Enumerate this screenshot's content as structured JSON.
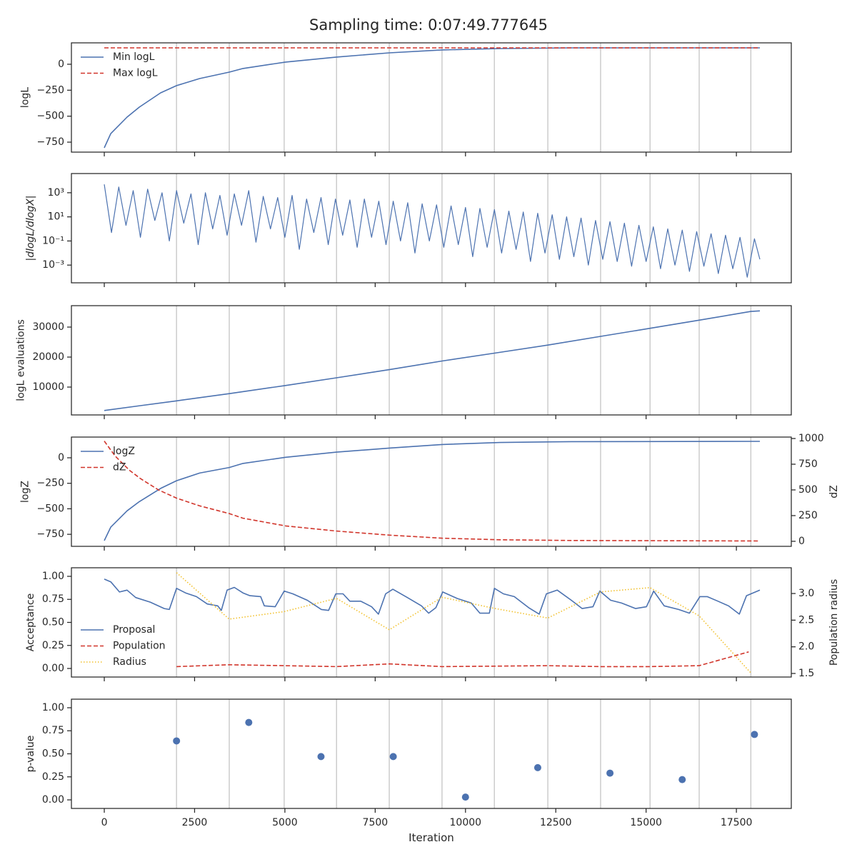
{
  "title": "Sampling time: 0:07:49.777645",
  "chart_data": [
    {
      "type": "line",
      "ylabel": "logL",
      "legend": "upper left",
      "xlim": [
        -910,
        19020
      ],
      "xticks": [
        0,
        2500,
        5000,
        7500,
        10000,
        12500,
        15000,
        17500
      ],
      "ylim": [
        -846,
        206
      ],
      "yticks": [
        0,
        {
          "value": -250,
          "label": "−250"
        },
        {
          "value": -500,
          "label": "−500"
        },
        {
          "value": -750,
          "label": "−750"
        }
      ],
      "vlines": [
        2000,
        3460,
        4980,
        6430,
        7890,
        9350,
        10800,
        12280,
        13740,
        15110,
        16470,
        17900
      ],
      "series": [
        {
          "name": "Min logL",
          "color": "#4c72b0",
          "style": "solid",
          "x": [
            0,
            180,
            630,
            970,
            1560,
            2000,
            2640,
            3460,
            3840,
            5020,
            6430,
            7890,
            9350,
            10960,
            12930,
            18150
          ],
          "values": [
            -805,
            -668,
            -509,
            -413,
            -275,
            -206,
            -138,
            -76,
            -41,
            21,
            69,
            110,
            138,
            151,
            158,
            158
          ]
        },
        {
          "name": "Max logL",
          "color": "#d1352b",
          "style": "dashed",
          "x": [
            0,
            18150
          ],
          "values": [
            158,
            158
          ]
        }
      ]
    },
    {
      "type": "line",
      "ylabel": "|dlogL/dlogX|",
      "log": true,
      "xlim": [
        -910,
        19020
      ],
      "xticks": [
        0,
        2500,
        5000,
        7500,
        10000,
        12500,
        15000,
        17500
      ],
      "ylim": [
        3.4e-05,
        39000
      ],
      "yticks": [
        {
          "value": 1000,
          "label": "10³"
        },
        {
          "value": 10,
          "label": "10¹"
        },
        {
          "value": 0.1,
          "label": "10⁻¹"
        },
        {
          "value": 0.001,
          "label": "10⁻³"
        }
      ],
      "vlines": [
        2000,
        3460,
        4980,
        6430,
        7890,
        9350,
        10800,
        12280,
        13740,
        15110,
        16470,
        17900
      ],
      "series": [
        {
          "color": "#4c72b0",
          "style": "solid",
          "x": [
            0,
            200,
            400,
            600,
            800,
            1000,
            1200,
            1400,
            1600,
            1800,
            2000,
            2200,
            2400,
            2600,
            2800,
            3000,
            3200,
            3400,
            3600,
            3800,
            4000,
            4200,
            4400,
            4600,
            4800,
            5000,
            5200,
            5400,
            5600,
            5800,
            6000,
            6200,
            6400,
            6600,
            6800,
            7000,
            7200,
            7400,
            7600,
            7800,
            8000,
            8200,
            8400,
            8600,
            8800,
            9000,
            9200,
            9400,
            9600,
            9800,
            10000,
            10200,
            10400,
            10600,
            10800,
            11000,
            11200,
            11400,
            11600,
            11800,
            12000,
            12200,
            12400,
            12600,
            12800,
            13000,
            13200,
            13400,
            13600,
            13800,
            14000,
            14200,
            14400,
            14600,
            14800,
            15000,
            15200,
            15400,
            15600,
            15800,
            16000,
            16200,
            16400,
            16600,
            16800,
            17000,
            17200,
            17400,
            17600,
            17800,
            18000,
            18150
          ],
          "values": [
            5000,
            0.5,
            3000,
            2,
            1500,
            0.2,
            2000,
            5,
            1000,
            0.1,
            1500,
            3,
            800,
            0.05,
            1000,
            1,
            600,
            0.3,
            800,
            2,
            1500,
            0.08,
            500,
            1,
            400,
            0.2,
            600,
            0.02,
            300,
            0.5,
            400,
            0.05,
            300,
            0.3,
            250,
            0.03,
            300,
            0.2,
            200,
            0.05,
            200,
            0.1,
            150,
            0.01,
            120,
            0.1,
            100,
            0.03,
            80,
            0.05,
            60,
            0.005,
            50,
            0.03,
            40,
            0.01,
            30,
            0.02,
            25,
            0.002,
            20,
            0.01,
            15,
            0.003,
            10,
            0.005,
            8,
            0.001,
            5,
            0.003,
            4,
            0.002,
            3,
            0.0008,
            2,
            0.002,
            1.5,
            0.0005,
            1,
            0.001,
            0.8,
            0.0003,
            0.6,
            0.0008,
            0.4,
            0.0002,
            0.3,
            0.0005,
            0.2,
            0.0001,
            0.15,
            0.003
          ]
        }
      ]
    },
    {
      "type": "line",
      "ylabel": "logL evaluations",
      "xlim": [
        -910,
        19020
      ],
      "xticks": [
        0,
        2500,
        5000,
        7500,
        10000,
        12500,
        15000,
        17500
      ],
      "ylim": [
        714,
        37140
      ],
      "yticks": [
        10000,
        20000,
        30000
      ],
      "vlines": [
        2000,
        3460,
        4980,
        6430,
        7890,
        9350,
        10800,
        12280,
        13740,
        15110,
        16470,
        17900
      ],
      "series": [
        {
          "color": "#4c72b0",
          "style": "solid",
          "x": [
            0,
            1000,
            2000,
            3460,
            5000,
            6430,
            7890,
            9350,
            10800,
            12280,
            13740,
            15110,
            16470,
            17900,
            18150
          ],
          "values": [
            2200,
            3800,
            5400,
            7800,
            10500,
            13100,
            15800,
            18700,
            21300,
            24000,
            26900,
            29600,
            32300,
            35200,
            35400
          ]
        }
      ]
    },
    {
      "type": "line",
      "ylabel": "logZ",
      "y2label": "dZ",
      "legend": "upper left",
      "xlim": [
        -910,
        19020
      ],
      "xticks": [
        0,
        2500,
        5000,
        7500,
        10000,
        12500,
        15000,
        17500
      ],
      "ylim": [
        -868,
        203
      ],
      "yticks": [
        0,
        {
          "value": -250,
          "label": "−250"
        },
        {
          "value": -500,
          "label": "−500"
        },
        {
          "value": -750,
          "label": "−750"
        }
      ],
      "y2lim": [
        -49,
        1014
      ],
      "y2ticks": [
        0,
        250,
        500,
        750,
        1000
      ],
      "vlines": [
        2000,
        3460,
        4980,
        6430,
        7890,
        9350,
        10800,
        12280,
        13740,
        15110,
        16470,
        17900
      ],
      "series": [
        {
          "name": "logZ",
          "color": "#4c72b0",
          "style": "solid",
          "x": [
            0,
            180,
            630,
            970,
            1560,
            2000,
            2640,
            3460,
            3840,
            5020,
            6430,
            7890,
            9350,
            10960,
            12930,
            18150
          ],
          "values": [
            -812,
            -680,
            -520,
            -430,
            -300,
            -225,
            -150,
            -95,
            -55,
            5,
            55,
            95,
            130,
            150,
            158,
            161
          ]
        },
        {
          "name": "dZ",
          "color": "#d1352b",
          "style": "dashed",
          "axis": "y2",
          "x": [
            0,
            300,
            700,
            1000,
            1500,
            2000,
            2640,
            3460,
            3840,
            5020,
            6430,
            7890,
            9350,
            10960,
            12930,
            18150
          ],
          "values": [
            975,
            830,
            690,
            610,
            500,
            420,
            345,
            270,
            225,
            150,
            100,
            60,
            30,
            15,
            8,
            3
          ]
        }
      ]
    },
    {
      "type": "line",
      "ylabel": "Acceptance",
      "y2label": "Population radius",
      "legend": "lower left",
      "xlim": [
        -910,
        19020
      ],
      "xticks": [
        0,
        2500,
        5000,
        7500,
        10000,
        12500,
        15000,
        17500
      ],
      "ylim": [
        -0.093,
        1.093
      ],
      "yticks": [
        {
          "value": 1,
          "label": "1.00"
        },
        0.75,
        {
          "value": 0.5,
          "label": "0.50"
        },
        0.25,
        {
          "value": 0,
          "label": "0.00"
        }
      ],
      "y2lim": [
        1.433,
        3.483
      ],
      "y2ticks": [
        {
          "value": 3,
          "label": "3.0"
        },
        2.5,
        {
          "value": 2,
          "label": "2.0"
        },
        1.5
      ],
      "vlines": [
        2000,
        3460,
        4980,
        6430,
        7890,
        9350,
        10800,
        12280,
        13740,
        15110,
        16470,
        17900
      ],
      "series": [
        {
          "name": "Proposal",
          "color": "#4c72b0",
          "style": "solid",
          "x": [
            0,
            180,
            420,
            630,
            870,
            1270,
            1660,
            1800,
            2000,
            2250,
            2550,
            2850,
            3140,
            3240,
            3400,
            3600,
            3840,
            4030,
            4330,
            4430,
            4730,
            4980,
            5220,
            5620,
            6010,
            6210,
            6410,
            6610,
            6800,
            7100,
            7400,
            7590,
            7790,
            7990,
            8390,
            8780,
            8980,
            9180,
            9370,
            9770,
            10160,
            10400,
            10660,
            10800,
            11050,
            11350,
            11750,
            12040,
            12240,
            12540,
            12930,
            13230,
            13530,
            13720,
            14020,
            14320,
            14710,
            15010,
            15210,
            15500,
            15900,
            16200,
            16490,
            16690,
            16990,
            17280,
            17580,
            17780,
            18150
          ],
          "values": [
            0.97,
            0.94,
            0.83,
            0.85,
            0.77,
            0.72,
            0.65,
            0.64,
            0.87,
            0.82,
            0.78,
            0.7,
            0.68,
            0.63,
            0.85,
            0.88,
            0.82,
            0.79,
            0.78,
            0.68,
            0.67,
            0.84,
            0.81,
            0.74,
            0.64,
            0.63,
            0.81,
            0.81,
            0.73,
            0.73,
            0.67,
            0.59,
            0.81,
            0.86,
            0.77,
            0.68,
            0.6,
            0.66,
            0.83,
            0.76,
            0.71,
            0.6,
            0.6,
            0.87,
            0.81,
            0.78,
            0.66,
            0.59,
            0.81,
            0.85,
            0.74,
            0.65,
            0.67,
            0.84,
            0.74,
            0.71,
            0.65,
            0.67,
            0.84,
            0.68,
            0.64,
            0.6,
            0.78,
            0.78,
            0.73,
            0.68,
            0.59,
            0.79,
            0.85
          ]
        },
        {
          "name": "Population",
          "color": "#d1352b",
          "style": "dashed",
          "x": [
            2000,
            3460,
            4980,
            6430,
            7890,
            9350,
            12280,
            13740,
            15110,
            16470,
            17840
          ],
          "values": [
            0.02,
            0.04,
            0.03,
            0.02,
            0.05,
            0.02,
            0.03,
            0.02,
            0.02,
            0.03,
            0.18
          ]
        },
        {
          "name": "Radius",
          "color": "#f2c12e",
          "style": "dotted",
          "axis": "y2",
          "x": [
            2000,
            3460,
            4980,
            6430,
            7890,
            9350,
            10800,
            12280,
            13740,
            15110,
            16470,
            17900
          ],
          "values": [
            3.39,
            2.52,
            2.66,
            2.91,
            2.32,
            2.93,
            2.72,
            2.54,
            3.03,
            3.11,
            2.58,
            1.51
          ]
        }
      ]
    },
    {
      "type": "scatter",
      "ylabel": "p-value",
      "xlabel": "Iteration",
      "xlim": [
        -910,
        19020
      ],
      "xticks": [
        0,
        2500,
        5000,
        7500,
        10000,
        12500,
        15000,
        17500
      ],
      "ylim": [
        -0.093,
        1.093
      ],
      "yticks": [
        {
          "value": 1,
          "label": "1.00"
        },
        0.75,
        {
          "value": 0.5,
          "label": "0.50"
        },
        0.25,
        {
          "value": 0,
          "label": "0.00"
        }
      ],
      "vlines": [
        2000,
        3460,
        4980,
        6430,
        7890,
        9350,
        10800,
        12280,
        13740,
        15110,
        16470,
        17900
      ],
      "series": [
        {
          "color": "#4c72b0",
          "x": [
            2000,
            4000,
            6000,
            8000,
            10000,
            12000,
            14000,
            16000,
            18000
          ],
          "values": [
            0.64,
            0.84,
            0.47,
            0.47,
            0.03,
            0.35,
            0.29,
            0.22,
            0.71
          ]
        }
      ]
    }
  ]
}
